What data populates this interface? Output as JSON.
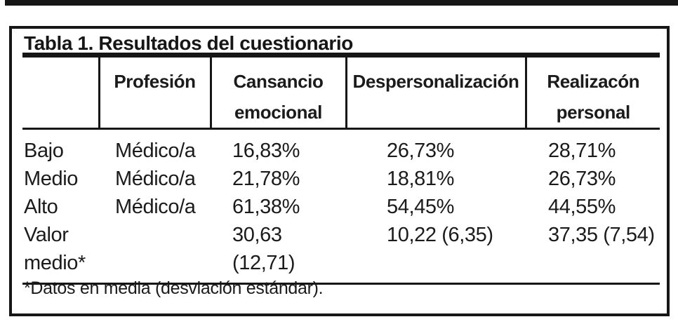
{
  "title": "Tabla 1. Resultados del cuestionario",
  "table": {
    "columns": [
      {
        "label": ""
      },
      {
        "label": "Profesión"
      },
      {
        "label": "Cansancio emocional"
      },
      {
        "label": "Despersonalización"
      },
      {
        "label": "Realizacón personal"
      }
    ],
    "rows": [
      {
        "cells": [
          "Bajo",
          "Médico/a",
          "16,83%",
          "26,73%",
          "28,71%"
        ]
      },
      {
        "cells": [
          "Medio",
          "Médico/a",
          "21,78%",
          "18,81%",
          "26,73%"
        ]
      },
      {
        "cells": [
          "Alto",
          "Médico/a",
          "61,38%",
          "54,45%",
          "44,55%"
        ]
      },
      {
        "cells": [
          "Valor medio*",
          "",
          "30,63 (12,71)",
          "10,22 (6,35)",
          "37,35 (7,54)"
        ]
      }
    ]
  },
  "footnote": "*Datos en media (desviación estándar)."
}
